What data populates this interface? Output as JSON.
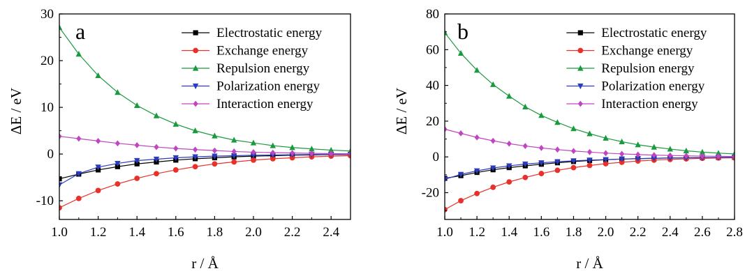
{
  "chart_data": [
    {
      "type": "line",
      "panel_label": "a",
      "xlabel": "r / Å",
      "ylabel": "ΔE / eV",
      "xlim": [
        1.0,
        2.5
      ],
      "ylim": [
        -14,
        30
      ],
      "xticks": [
        "1.0",
        "1.2",
        "1.4",
        "1.6",
        "1.8",
        "2.0",
        "2.2",
        "2.4"
      ],
      "yticks": [
        "-10",
        "0",
        "10",
        "20",
        "30"
      ],
      "x": [
        1.0,
        1.1,
        1.2,
        1.3,
        1.4,
        1.5,
        1.6,
        1.7,
        1.8,
        1.9,
        2.0,
        2.1,
        2.2,
        2.3,
        2.4,
        2.5
      ],
      "legend_position": "top-right",
      "series": [
        {
          "name": "Electrostatic energy",
          "color": "#000000",
          "marker": "square",
          "values": [
            -5.3,
            -4.3,
            -3.4,
            -2.7,
            -2.1,
            -1.7,
            -1.3,
            -1.0,
            -0.8,
            -0.6,
            -0.45,
            -0.35,
            -0.25,
            -0.18,
            -0.12,
            -0.1
          ]
        },
        {
          "name": "Exchange energy",
          "color": "#e8312a",
          "marker": "circle",
          "values": [
            -11.5,
            -9.5,
            -7.8,
            -6.4,
            -5.2,
            -4.2,
            -3.4,
            -2.7,
            -2.1,
            -1.7,
            -1.3,
            -1.0,
            -0.8,
            -0.6,
            -0.45,
            -0.35
          ]
        },
        {
          "name": "Repulsion energy",
          "color": "#1a9a3e",
          "marker": "triangle-up",
          "values": [
            27.1,
            21.4,
            16.8,
            13.2,
            10.4,
            8.2,
            6.4,
            5.0,
            3.9,
            3.0,
            2.4,
            1.8,
            1.4,
            1.1,
            0.85,
            0.65
          ]
        },
        {
          "name": "Polarization energy",
          "color": "#2b3bbf",
          "marker": "triangle-down",
          "values": [
            -6.6,
            -4.2,
            -2.8,
            -2.0,
            -1.4,
            -1.1,
            -0.8,
            -0.6,
            -0.45,
            -0.35,
            -0.25,
            -0.2,
            -0.15,
            -0.1,
            -0.08,
            -0.06
          ]
        },
        {
          "name": "Interaction energy",
          "color": "#c045c0",
          "marker": "diamond",
          "values": [
            3.8,
            3.3,
            2.8,
            2.3,
            1.9,
            1.5,
            1.2,
            0.95,
            0.75,
            0.55,
            0.4,
            0.3,
            0.22,
            0.15,
            0.1,
            0.06
          ]
        }
      ]
    },
    {
      "type": "line",
      "panel_label": "b",
      "xlabel": "r / Å",
      "ylabel": "ΔE / eV",
      "xlim": [
        1.0,
        2.8
      ],
      "ylim": [
        -35,
        80
      ],
      "xticks": [
        "1.0",
        "1.2",
        "1.4",
        "1.6",
        "1.8",
        "2.0",
        "2.2",
        "2.4",
        "2.6",
        "2.8"
      ],
      "yticks": [
        "-20",
        "0",
        "20",
        "40",
        "60",
        "80"
      ],
      "x": [
        1.0,
        1.1,
        1.2,
        1.3,
        1.4,
        1.5,
        1.6,
        1.7,
        1.8,
        1.9,
        2.0,
        2.1,
        2.2,
        2.3,
        2.4,
        2.5,
        2.6,
        2.7,
        2.8
      ],
      "legend_position": "top-right",
      "series": [
        {
          "name": "Electrostatic energy",
          "color": "#000000",
          "marker": "square",
          "values": [
            -12.0,
            -10.5,
            -8.7,
            -7.2,
            -6.0,
            -5.0,
            -4.1,
            -3.3,
            -2.6,
            -2.0,
            -1.6,
            -1.2,
            -1.0,
            -0.8,
            -0.6,
            -0.5,
            -0.4,
            -0.3,
            -0.25
          ]
        },
        {
          "name": "Exchange energy",
          "color": "#e8312a",
          "marker": "circle",
          "values": [
            -29.5,
            -24.5,
            -20.5,
            -17.0,
            -14.0,
            -11.5,
            -9.3,
            -7.5,
            -6.0,
            -4.8,
            -3.8,
            -3.0,
            -2.3,
            -1.8,
            -1.4,
            -1.1,
            -0.8,
            -0.6,
            -0.5
          ]
        },
        {
          "name": "Repulsion energy",
          "color": "#1a9a3e",
          "marker": "triangle-up",
          "values": [
            69.5,
            58.0,
            48.5,
            40.5,
            34.0,
            28.0,
            23.2,
            19.3,
            15.8,
            13.0,
            10.5,
            8.5,
            6.8,
            5.5,
            4.4,
            3.4,
            2.7,
            2.1,
            1.7
          ]
        },
        {
          "name": "Polarization energy",
          "color": "#2b3bbf",
          "marker": "triangle-down",
          "values": [
            -12.5,
            -9.8,
            -7.8,
            -6.2,
            -5.0,
            -4.0,
            -3.3,
            -2.7,
            -2.2,
            -1.8,
            -1.5,
            -1.2,
            -1.0,
            -0.8,
            -0.6,
            -0.5,
            -0.4,
            -0.3,
            -0.25
          ]
        },
        {
          "name": "Interaction energy",
          "color": "#c045c0",
          "marker": "diamond",
          "values": [
            15.5,
            13.2,
            10.9,
            9.0,
            7.4,
            6.1,
            5.0,
            4.1,
            3.3,
            2.7,
            2.1,
            1.7,
            1.3,
            1.0,
            0.8,
            0.6,
            0.45,
            0.35,
            0.25
          ]
        }
      ]
    }
  ]
}
